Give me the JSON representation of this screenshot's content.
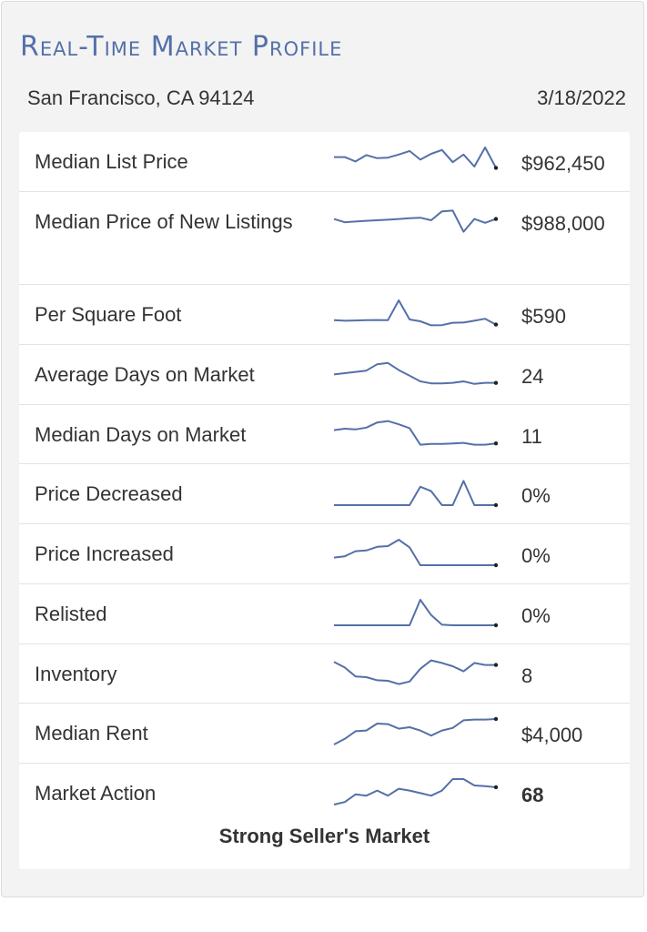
{
  "title": "Real-Time Market Profile",
  "location": "San Francisco, CA 94124",
  "date": "3/18/2022",
  "colors": {
    "sparkline": "#5470a8",
    "title": "#5470a8"
  },
  "rows": [
    {
      "label": "Median List Price",
      "value": "$962,450",
      "trend": [
        0.62,
        0.62,
        0.45,
        0.7,
        0.58,
        0.6,
        0.72,
        0.86,
        0.52,
        0.75,
        0.9,
        0.42,
        0.72,
        0.25,
        1.0,
        0.2
      ]
    },
    {
      "label": "Median Price of New Listings",
      "value": "$988,000",
      "trend": [
        0.55,
        0.42,
        0.45,
        0.48,
        0.5,
        0.52,
        0.55,
        0.58,
        0.6,
        0.5,
        0.85,
        0.88,
        0.05,
        0.55,
        0.4,
        0.55
      ]
    },
    {
      "label": "Per Square Foot",
      "value": "$590",
      "trend": [
        0.22,
        0.2,
        0.21,
        0.22,
        0.23,
        0.22,
        1.0,
        0.25,
        0.18,
        0.02,
        0.03,
        0.12,
        0.13,
        0.2,
        0.28,
        0.05
      ]
    },
    {
      "label": "Average Days on Market",
      "value": "24",
      "trend": [
        0.45,
        0.5,
        0.55,
        0.6,
        0.85,
        0.9,
        0.62,
        0.4,
        0.18,
        0.1,
        0.1,
        0.12,
        0.18,
        0.08,
        0.12,
        0.12
      ]
    },
    {
      "label": "Median Days on Market",
      "value": "11",
      "trend": [
        0.62,
        0.68,
        0.65,
        0.72,
        0.92,
        0.98,
        0.85,
        0.7,
        0.05,
        0.08,
        0.08,
        0.1,
        0.12,
        0.05,
        0.05,
        0.1
      ]
    },
    {
      "label": "Price Decreased",
      "value": "0%",
      "trend": [
        0,
        0,
        0,
        0,
        0,
        0,
        0,
        0,
        0.72,
        0.55,
        0,
        0,
        0.95,
        0,
        0,
        0
      ]
    },
    {
      "label": "Price Increased",
      "value": "0%",
      "trend": [
        0.3,
        0.35,
        0.55,
        0.58,
        0.72,
        0.75,
        1.0,
        0.7,
        0,
        0,
        0,
        0,
        0,
        0,
        0,
        0
      ]
    },
    {
      "label": "Relisted",
      "value": "0%",
      "trend": [
        0,
        0,
        0,
        0,
        0,
        0,
        0,
        0,
        1.0,
        0.4,
        0.02,
        0,
        0,
        0,
        0,
        0
      ]
    },
    {
      "label": "Inventory",
      "value": "8",
      "trend": [
        0.92,
        0.7,
        0.35,
        0.32,
        0.2,
        0.18,
        0.05,
        0.15,
        0.65,
        0.98,
        0.88,
        0.75,
        0.55,
        0.88,
        0.8,
        0.8
      ]
    },
    {
      "label": "Median Rent",
      "value": "$4,000",
      "trend": [
        0,
        0.22,
        0.52,
        0.55,
        0.82,
        0.8,
        0.62,
        0.68,
        0.55,
        0.35,
        0.55,
        0.65,
        0.95,
        0.98,
        0.98,
        1.0
      ]
    },
    {
      "label": "Market Action",
      "value": "68",
      "trend": [
        0,
        0.1,
        0.4,
        0.35,
        0.55,
        0.35,
        0.62,
        0.55,
        0.45,
        0.35,
        0.55,
        1.0,
        1.0,
        0.75,
        0.72,
        0.68
      ]
    }
  ],
  "verdict": "Strong Seller's Market"
}
